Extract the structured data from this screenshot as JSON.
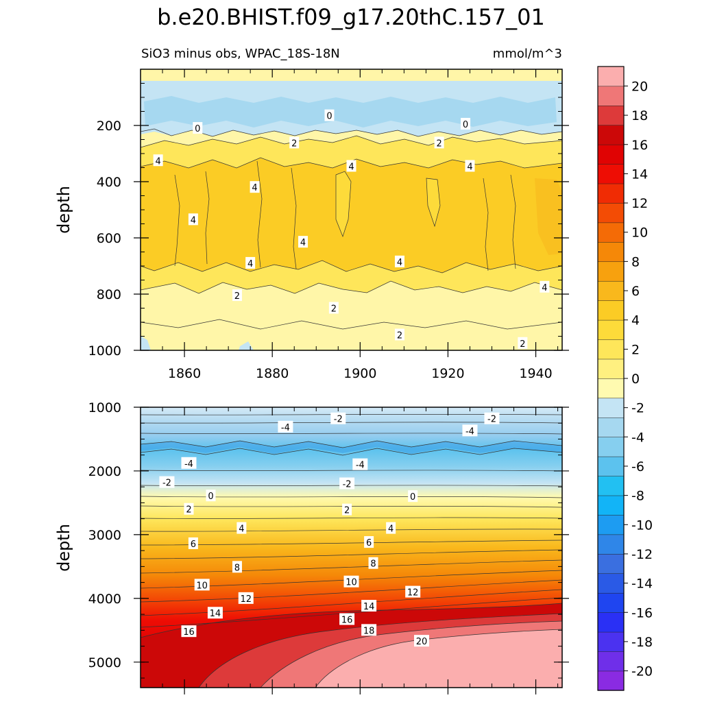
{
  "chart_data": {
    "type": "heatmap",
    "title": "b.e20.BHIST.f09_g17.20thC.157_01",
    "subtitle_left": "SiO3 minus obs, WPAC_18S-18N",
    "subtitle_right": "mmol/m^3",
    "colorbar": {
      "levels": [
        -20,
        -18,
        -16,
        -14,
        -12,
        -10,
        -8,
        -6,
        -4,
        -2,
        0,
        2,
        4,
        6,
        8,
        10,
        12,
        14,
        16,
        18,
        20
      ],
      "tick_labels": [
        "-20",
        "-18",
        "-16",
        "-14",
        "-12",
        "-10",
        "-8",
        "-6",
        "-4",
        "-2",
        "0",
        "2",
        "4",
        "6",
        "8",
        "10",
        "12",
        "14",
        "16",
        "18",
        "20"
      ],
      "colors": [
        "#8a2be2",
        "#6f2fe9",
        "#4b32f0",
        "#2a30f5",
        "#1f45f0",
        "#2a5ae6",
        "#3a6fe0",
        "#2f86e8",
        "#1d9cf2",
        "#12b4f7",
        "#22c0f2",
        "#5cc2ee",
        "#86cfef",
        "#a6d8f0",
        "#c4e4f4",
        "#fffab0",
        "#fff080",
        "#fee65a",
        "#fddb3a",
        "#fbcc25",
        "#f9b81c",
        "#f7a10e",
        "#f58808",
        "#f46b06",
        "#f34c05",
        "#f02c04",
        "#ee0d04",
        "#e00303",
        "#cc0808",
        "#dd3a3a",
        "#ef7777",
        "#fbaeae"
      ]
    },
    "panels": [
      {
        "name": "upper",
        "ylabel": "depth",
        "ylim": [
          0,
          1000
        ],
        "y_reversed": true,
        "yticks": [
          200,
          400,
          600,
          800,
          1000
        ],
        "xlim": [
          1850,
          1946
        ],
        "xticks": [
          1860,
          1880,
          1900,
          1920,
          1940
        ],
        "contour_labels": [
          {
            "text": "0",
            "x": 1863,
            "y": 210
          },
          {
            "text": "0",
            "x": 1893,
            "y": 165
          },
          {
            "text": "0",
            "x": 1924,
            "y": 195
          },
          {
            "text": "2",
            "x": 1885,
            "y": 262
          },
          {
            "text": "2",
            "x": 1918,
            "y": 262
          },
          {
            "text": "4",
            "x": 1854,
            "y": 325
          },
          {
            "text": "4",
            "x": 1898,
            "y": 345
          },
          {
            "text": "4",
            "x": 1925,
            "y": 345
          },
          {
            "text": "4",
            "x": 1876,
            "y": 420
          },
          {
            "text": "4",
            "x": 1862,
            "y": 535
          },
          {
            "text": "4",
            "x": 1887,
            "y": 615
          },
          {
            "text": "4",
            "x": 1875,
            "y": 690
          },
          {
            "text": "4",
            "x": 1909,
            "y": 685
          },
          {
            "text": "4",
            "x": 1942,
            "y": 775
          },
          {
            "text": "2",
            "x": 1872,
            "y": 805
          },
          {
            "text": "2",
            "x": 1894,
            "y": 850
          },
          {
            "text": "2",
            "x": 1909,
            "y": 945
          },
          {
            "text": "2",
            "x": 1937,
            "y": 975
          }
        ]
      },
      {
        "name": "lower",
        "ylabel": "depth",
        "ylim": [
          1000,
          5400
        ],
        "y_reversed": true,
        "yticks": [
          1000,
          2000,
          3000,
          4000,
          5000
        ],
        "xlim": [
          1850,
          1946
        ],
        "contour_labels": [
          {
            "text": "-2",
            "x": 1895,
            "y": 1180
          },
          {
            "text": "-2",
            "x": 1930,
            "y": 1180
          },
          {
            "text": "-4",
            "x": 1883,
            "y": 1310
          },
          {
            "text": "-4",
            "x": 1925,
            "y": 1370
          },
          {
            "text": "-4",
            "x": 1861,
            "y": 1880
          },
          {
            "text": "-4",
            "x": 1900,
            "y": 1900
          },
          {
            "text": "-2",
            "x": 1856,
            "y": 2180
          },
          {
            "text": "-2",
            "x": 1897,
            "y": 2200
          },
          {
            "text": "0",
            "x": 1866,
            "y": 2390
          },
          {
            "text": "0",
            "x": 1912,
            "y": 2400
          },
          {
            "text": "2",
            "x": 1861,
            "y": 2600
          },
          {
            "text": "2",
            "x": 1897,
            "y": 2610
          },
          {
            "text": "4",
            "x": 1873,
            "y": 2900
          },
          {
            "text": "4",
            "x": 1907,
            "y": 2900
          },
          {
            "text": "6",
            "x": 1862,
            "y": 3140
          },
          {
            "text": "6",
            "x": 1902,
            "y": 3120
          },
          {
            "text": "8",
            "x": 1872,
            "y": 3510
          },
          {
            "text": "8",
            "x": 1903,
            "y": 3450
          },
          {
            "text": "10",
            "x": 1864,
            "y": 3790
          },
          {
            "text": "10",
            "x": 1898,
            "y": 3740
          },
          {
            "text": "12",
            "x": 1874,
            "y": 4000
          },
          {
            "text": "12",
            "x": 1912,
            "y": 3900
          },
          {
            "text": "14",
            "x": 1867,
            "y": 4230
          },
          {
            "text": "14",
            "x": 1902,
            "y": 4120
          },
          {
            "text": "16",
            "x": 1861,
            "y": 4520
          },
          {
            "text": "16",
            "x": 1897,
            "y": 4330
          },
          {
            "text": "18",
            "x": 1902,
            "y": 4500
          },
          {
            "text": "20",
            "x": 1914,
            "y": 4670
          }
        ]
      }
    ]
  }
}
